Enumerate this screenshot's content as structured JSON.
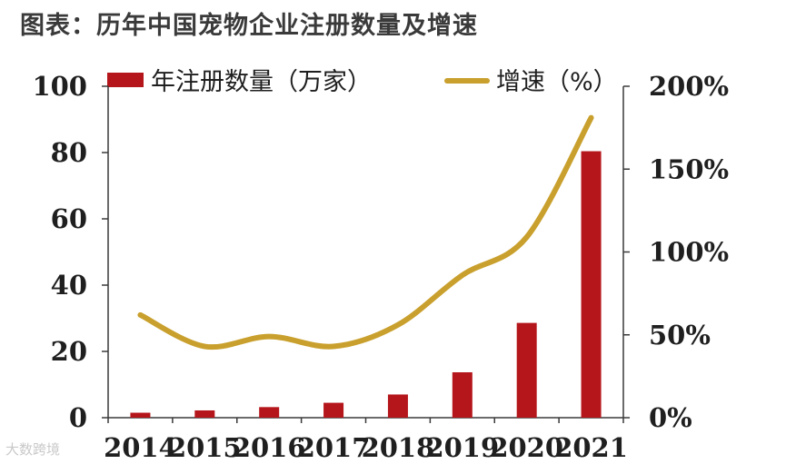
{
  "title": "图表：历年中国宠物企业注册数量及增速",
  "watermark": "大数跨境",
  "chart_data": {
    "type": "bar+line",
    "categories": [
      "2014",
      "2015",
      "2016",
      "2017",
      "2018",
      "2019",
      "2020",
      "2021"
    ],
    "series": [
      {
        "name": "年注册数量（万家）",
        "type": "bar",
        "axis": "left",
        "color": "#b5161b",
        "values": [
          1.5,
          2.2,
          3.2,
          4.5,
          7.0,
          13.7,
          28.6,
          80.4
        ]
      },
      {
        "name": "增速（%）",
        "type": "line",
        "axis": "right",
        "color": "#c9a02d",
        "values": [
          62,
          43,
          49,
          43,
          56,
          86,
          109,
          181
        ]
      }
    ],
    "y_left": {
      "range": [
        0,
        100
      ],
      "ticks": [
        "0",
        "20",
        "40",
        "60",
        "80",
        "100"
      ]
    },
    "y_right": {
      "range": [
        0,
        200
      ],
      "ticks": [
        "0%",
        "50%",
        "100%",
        "150%",
        "200%"
      ]
    },
    "grid": false,
    "legend_position": "top"
  }
}
